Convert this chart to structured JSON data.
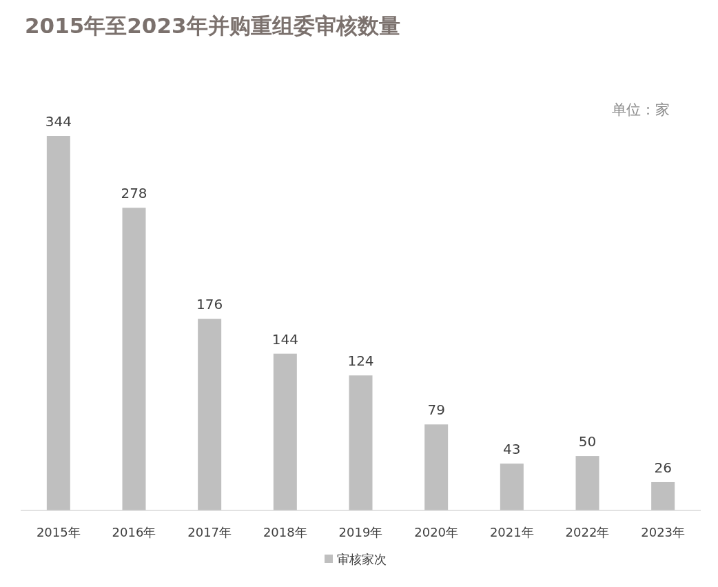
{
  "chart_data": {
    "type": "bar",
    "title": "2015年至2023年并购重组委审核数量",
    "categories": [
      "2015年",
      "2016年",
      "2017年",
      "2018年",
      "2019年",
      "2020年",
      "2021年",
      "2022年",
      "2023年"
    ],
    "series": [
      {
        "name": "审核家次",
        "color": "#bfbfbf",
        "values": [
          344,
          278,
          176,
          144,
          124,
          79,
          43,
          50,
          26
        ]
      }
    ],
    "data_labels": true,
    "legend": "bottom",
    "grid": false,
    "annotations": [
      "单位：家"
    ]
  }
}
